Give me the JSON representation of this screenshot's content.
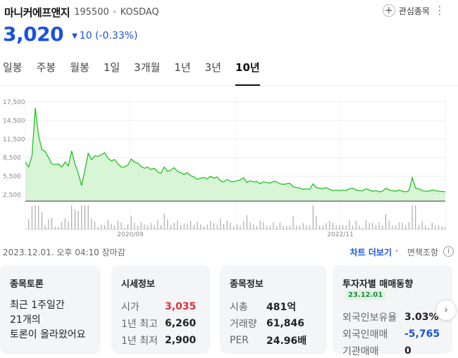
{
  "stock": {
    "name": "마니커에프앤지",
    "code": "195500",
    "market": "KOSDAQ",
    "price": "3,020",
    "change_arrow": "▼",
    "change": "10 (-0.33%)"
  },
  "actions": {
    "favorite_label": "관심종목",
    "favorite_icon": "plus-icon",
    "more_icon": "more-vertical-icon"
  },
  "tabs": [
    "일봉",
    "주봉",
    "월봉",
    "1일",
    "3개월",
    "1년",
    "3년",
    "10년"
  ],
  "active_tab": "10년",
  "meta": {
    "timestamp": "2023.12.01. 오후 04:10 장마감",
    "chart_more": "차트 더보기",
    "disclaimer": "면책조항",
    "info_icon": "info-icon"
  },
  "colors": {
    "accent_blue": "#1a52e0",
    "up_red": "#e0303a",
    "line_green": "#27c027",
    "area_green": "#d8f5d6"
  },
  "chart_data": {
    "type": "area",
    "y_ticks": [
      "17,500",
      "14,500",
      "11,500",
      "8,500",
      "5,500",
      "2,500"
    ],
    "y_tick_values": [
      17500,
      14500,
      11500,
      8500,
      5500,
      2500
    ],
    "x_ticks": [
      "2020/09",
      "2022/11"
    ],
    "ylim": [
      1500,
      18500
    ],
    "grid": true,
    "series": [
      {
        "values": [
          7800,
          7000,
          8800,
          16500,
          12000,
          9800,
          9500,
          8500,
          7500,
          7400,
          7500,
          7000,
          7800,
          7200,
          9600,
          7500,
          6000,
          4000,
          6500,
          9200,
          8200,
          8800,
          8700,
          9000,
          9300,
          8400,
          8000,
          8200,
          7500,
          7000,
          7000,
          7300,
          8300,
          7800,
          7600,
          7100,
          6800,
          7000,
          6600,
          6800,
          6200,
          6000,
          7000,
          6300,
          6500,
          6900,
          6300,
          6100,
          5800,
          6100,
          5600,
          5400,
          5000,
          5200,
          5300,
          5100,
          5500,
          5200,
          5400,
          4800,
          4600,
          5000,
          4700,
          4600,
          4800,
          4900,
          5300,
          4500,
          4800,
          4600,
          4700,
          4300,
          4600,
          4500,
          4400,
          4700,
          4600,
          4300,
          4200,
          4300,
          4400,
          3800,
          3700,
          3600,
          3400,
          3500,
          3400,
          4300,
          3700,
          3600,
          3500,
          3700,
          3400,
          3200,
          3300,
          3200,
          3300,
          3200,
          3500,
          3600,
          3300,
          3200,
          3200,
          3500,
          3300,
          3100,
          3200,
          3000,
          3100,
          3600,
          3300,
          3200,
          3100,
          3300,
          3100,
          3000,
          3200,
          5300,
          3600,
          3500,
          3200,
          3100,
          3100,
          3300,
          3200,
          3100,
          3050,
          3020
        ]
      }
    ]
  },
  "cards": {
    "discussion": {
      "title": "종목토론",
      "line1": "최근 1주일간",
      "line2": "21개의",
      "line3": "토론이 올라왔어요"
    },
    "quote": {
      "title": "시세정보",
      "rows": [
        {
          "label": "시가",
          "value": "3,035"
        },
        {
          "label": "1년 최고",
          "value": "6,260"
        },
        {
          "label": "1년 최저",
          "value": "2,900"
        }
      ]
    },
    "info": {
      "title": "종목정보",
      "rows": [
        {
          "label": "시총",
          "value": "481억"
        },
        {
          "label": "거래량",
          "value": "61,846"
        },
        {
          "label": "PER",
          "value": "24.96배"
        }
      ]
    },
    "investor": {
      "title": "투자자별 매매동향",
      "badge": "23.12.01",
      "rows": [
        {
          "label": "외국인보유율",
          "value": "3.03%"
        },
        {
          "label": "외국인매매",
          "value": "-5,765"
        },
        {
          "label": "기관매매",
          "value": "0"
        }
      ]
    },
    "next_icon": "chevron-right-icon"
  }
}
